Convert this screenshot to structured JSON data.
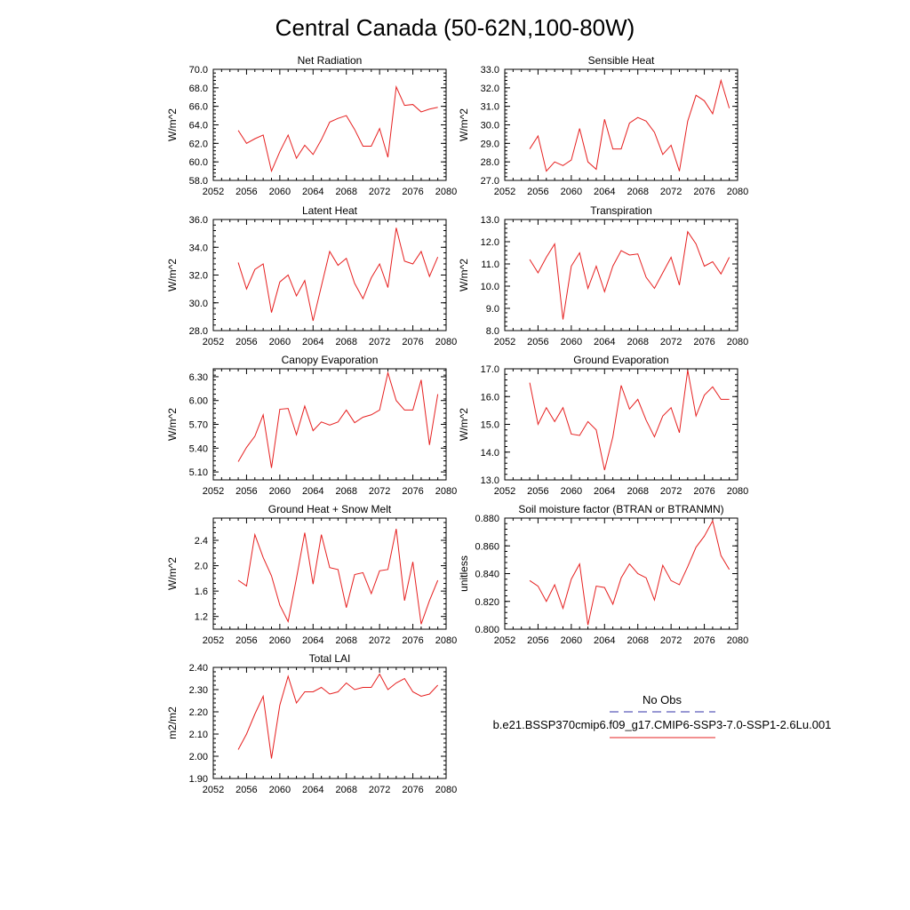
{
  "figure": {
    "title": "Central Canada (50-62N,100-80W)"
  },
  "legend": {
    "obs_label": "No Obs",
    "obs_color": "#3333aa",
    "model_label": "b.e21.BSSP370cmip6.f09_g17.CMIP6-SSP3-7.0-SSP1-2.6Lu.001",
    "model_color": "#e62020"
  },
  "chart_data": [
    {
      "type": "line",
      "title": "Net Radiation",
      "ylabel": "W/m^2",
      "xlim": [
        2052,
        2080
      ],
      "ylim": [
        58.0,
        70.0
      ],
      "xticks": [
        2052,
        2056,
        2060,
        2064,
        2068,
        2072,
        2076,
        2080
      ],
      "yticks": [
        "58.0",
        "60.0",
        "62.0",
        "64.0",
        "66.0",
        "68.0",
        "70.0"
      ],
      "x": [
        2055,
        2056,
        2057,
        2058,
        2059,
        2060,
        2061,
        2062,
        2063,
        2064,
        2065,
        2066,
        2067,
        2068,
        2069,
        2070,
        2071,
        2072,
        2073,
        2074,
        2075,
        2076,
        2077,
        2078,
        2079
      ],
      "values": [
        63.4,
        62.0,
        62.5,
        62.9,
        59.0,
        61.1,
        62.9,
        60.4,
        61.8,
        60.8,
        62.4,
        64.3,
        64.7,
        65.0,
        63.5,
        61.7,
        61.7,
        63.6,
        60.5,
        68.1,
        66.1,
        66.2,
        65.4,
        65.7,
        65.9
      ]
    },
    {
      "type": "line",
      "title": "Sensible Heat",
      "ylabel": "W/m^2",
      "xlim": [
        2052,
        2080
      ],
      "ylim": [
        27.0,
        33.0
      ],
      "xticks": [
        2052,
        2056,
        2060,
        2064,
        2068,
        2072,
        2076,
        2080
      ],
      "yticks": [
        "27.0",
        "28.0",
        "29.0",
        "30.0",
        "31.0",
        "32.0",
        "33.0"
      ],
      "x": [
        2055,
        2056,
        2057,
        2058,
        2059,
        2060,
        2061,
        2062,
        2063,
        2064,
        2065,
        2066,
        2067,
        2068,
        2069,
        2070,
        2071,
        2072,
        2073,
        2074,
        2075,
        2076,
        2077,
        2078,
        2079
      ],
      "values": [
        28.7,
        29.4,
        27.5,
        28.0,
        27.8,
        28.1,
        29.8,
        28.0,
        27.6,
        30.3,
        28.7,
        28.7,
        30.1,
        30.4,
        30.2,
        29.6,
        28.4,
        28.9,
        27.5,
        30.2,
        31.6,
        31.3,
        30.6,
        32.4,
        30.9
      ]
    },
    {
      "type": "line",
      "title": "Latent Heat",
      "ylabel": "W/m^2",
      "xlim": [
        2052,
        2080
      ],
      "ylim": [
        28.0,
        36.0
      ],
      "xticks": [
        2052,
        2056,
        2060,
        2064,
        2068,
        2072,
        2076,
        2080
      ],
      "yticks": [
        "28.0",
        "30.0",
        "32.0",
        "34.0",
        "36.0"
      ],
      "x": [
        2055,
        2056,
        2057,
        2058,
        2059,
        2060,
        2061,
        2062,
        2063,
        2064,
        2065,
        2066,
        2067,
        2068,
        2069,
        2070,
        2071,
        2072,
        2073,
        2074,
        2075,
        2076,
        2077,
        2078,
        2079
      ],
      "values": [
        32.9,
        31.0,
        32.4,
        32.8,
        29.3,
        31.5,
        32.0,
        30.5,
        31.6,
        28.7,
        31.2,
        33.7,
        32.7,
        33.2,
        31.4,
        30.3,
        31.8,
        32.8,
        31.1,
        35.4,
        33.0,
        32.8,
        33.7,
        31.9,
        33.3
      ]
    },
    {
      "type": "line",
      "title": "Transpiration",
      "ylabel": "W/m^2",
      "xlim": [
        2052,
        2080
      ],
      "ylim": [
        8.0,
        13.0
      ],
      "xticks": [
        2052,
        2056,
        2060,
        2064,
        2068,
        2072,
        2076,
        2080
      ],
      "yticks": [
        "8.0",
        "9.0",
        "10.0",
        "11.0",
        "12.0",
        "13.0"
      ],
      "x": [
        2055,
        2056,
        2057,
        2058,
        2059,
        2060,
        2061,
        2062,
        2063,
        2064,
        2065,
        2066,
        2067,
        2068,
        2069,
        2070,
        2071,
        2072,
        2073,
        2074,
        2075,
        2076,
        2077,
        2078,
        2079
      ],
      "values": [
        11.2,
        10.6,
        11.3,
        11.9,
        8.5,
        10.9,
        11.5,
        9.9,
        10.9,
        9.75,
        10.9,
        11.6,
        11.4,
        11.45,
        10.4,
        9.9,
        10.6,
        11.3,
        10.05,
        12.45,
        11.9,
        10.9,
        11.1,
        10.55,
        11.3
      ]
    },
    {
      "type": "line",
      "title": "Canopy Evaporation",
      "ylabel": "W/m^2",
      "xlim": [
        2052,
        2080
      ],
      "ylim": [
        5.0,
        6.4
      ],
      "xticks": [
        2052,
        2056,
        2060,
        2064,
        2068,
        2072,
        2076,
        2080
      ],
      "yticks": [
        "5.10",
        "5.40",
        "5.70",
        "6.00",
        "6.30"
      ],
      "x": [
        2055,
        2056,
        2057,
        2058,
        2059,
        2060,
        2061,
        2062,
        2063,
        2064,
        2065,
        2066,
        2067,
        2068,
        2069,
        2070,
        2071,
        2072,
        2073,
        2074,
        2075,
        2076,
        2077,
        2078,
        2079
      ],
      "values": [
        5.23,
        5.41,
        5.55,
        5.82,
        5.15,
        5.89,
        5.9,
        5.57,
        5.93,
        5.62,
        5.73,
        5.69,
        5.73,
        5.88,
        5.72,
        5.79,
        5.82,
        5.88,
        6.35,
        6.0,
        5.88,
        5.88,
        6.26,
        5.44,
        6.08
      ]
    },
    {
      "type": "line",
      "title": "Ground Evaporation",
      "ylabel": "W/m^2",
      "xlim": [
        2052,
        2080
      ],
      "ylim": [
        13.0,
        17.0
      ],
      "xticks": [
        2052,
        2056,
        2060,
        2064,
        2068,
        2072,
        2076,
        2080
      ],
      "yticks": [
        "13.0",
        "14.0",
        "15.0",
        "16.0",
        "17.0"
      ],
      "x": [
        2055,
        2056,
        2057,
        2058,
        2059,
        2060,
        2061,
        2062,
        2063,
        2064,
        2065,
        2066,
        2067,
        2068,
        2069,
        2070,
        2071,
        2072,
        2073,
        2074,
        2075,
        2076,
        2077,
        2078,
        2079
      ],
      "values": [
        16.5,
        15.0,
        15.6,
        15.1,
        15.6,
        14.65,
        14.6,
        15.1,
        14.8,
        13.35,
        14.55,
        16.4,
        15.55,
        15.9,
        15.15,
        14.55,
        15.3,
        15.6,
        14.7,
        16.95,
        15.3,
        16.05,
        16.35,
        15.9,
        15.9
      ]
    },
    {
      "type": "line",
      "title": "Ground Heat + Snow Melt",
      "ylabel": "W/m^2",
      "xlim": [
        2052,
        2080
      ],
      "ylim": [
        1.0,
        2.75
      ],
      "xticks": [
        2052,
        2056,
        2060,
        2064,
        2068,
        2072,
        2076,
        2080
      ],
      "yticks": [
        "1.2",
        "1.6",
        "2.0",
        "2.4"
      ],
      "x": [
        2055,
        2056,
        2057,
        2058,
        2059,
        2060,
        2061,
        2062,
        2063,
        2064,
        2065,
        2066,
        2067,
        2068,
        2069,
        2070,
        2071,
        2072,
        2073,
        2074,
        2075,
        2076,
        2077,
        2078,
        2079
      ],
      "values": [
        1.77,
        1.68,
        2.49,
        2.13,
        1.84,
        1.38,
        1.12,
        1.8,
        2.52,
        1.71,
        2.49,
        1.97,
        1.94,
        1.34,
        1.86,
        1.89,
        1.56,
        1.92,
        1.94,
        2.58,
        1.45,
        2.06,
        1.08,
        1.45,
        1.77
      ]
    },
    {
      "type": "line",
      "title": "Soil moisture factor (BTRAN or BTRANMN)",
      "ylabel": "unitless",
      "xlim": [
        2052,
        2080
      ],
      "ylim": [
        0.8,
        0.88
      ],
      "xticks": [
        2052,
        2056,
        2060,
        2064,
        2068,
        2072,
        2076,
        2080
      ],
      "yticks": [
        "0.800",
        "0.820",
        "0.840",
        "0.860",
        "0.880"
      ],
      "x": [
        2055,
        2056,
        2057,
        2058,
        2059,
        2060,
        2061,
        2062,
        2063,
        2064,
        2065,
        2066,
        2067,
        2068,
        2069,
        2070,
        2071,
        2072,
        2073,
        2074,
        2075,
        2076,
        2077,
        2078,
        2079
      ],
      "values": [
        0.835,
        0.831,
        0.82,
        0.832,
        0.815,
        0.836,
        0.847,
        0.803,
        0.831,
        0.83,
        0.818,
        0.837,
        0.847,
        0.84,
        0.837,
        0.821,
        0.846,
        0.835,
        0.832,
        0.845,
        0.859,
        0.867,
        0.878,
        0.853,
        0.843
      ]
    },
    {
      "type": "line",
      "title": "Total LAI",
      "ylabel": "m2/m2",
      "xlim": [
        2052,
        2080
      ],
      "ylim": [
        1.9,
        2.4
      ],
      "xticks": [
        2052,
        2056,
        2060,
        2064,
        2068,
        2072,
        2076,
        2080
      ],
      "yticks": [
        "1.90",
        "2.00",
        "2.10",
        "2.20",
        "2.30",
        "2.40"
      ],
      "x": [
        2055,
        2056,
        2057,
        2058,
        2059,
        2060,
        2061,
        2062,
        2063,
        2064,
        2065,
        2066,
        2067,
        2068,
        2069,
        2070,
        2071,
        2072,
        2073,
        2074,
        2075,
        2076,
        2077,
        2078,
        2079
      ],
      "values": [
        2.03,
        2.1,
        2.19,
        2.27,
        1.99,
        2.23,
        2.36,
        2.24,
        2.29,
        2.29,
        2.31,
        2.28,
        2.29,
        2.33,
        2.3,
        2.31,
        2.31,
        2.37,
        2.3,
        2.33,
        2.35,
        2.29,
        2.27,
        2.28,
        2.32
      ]
    }
  ]
}
